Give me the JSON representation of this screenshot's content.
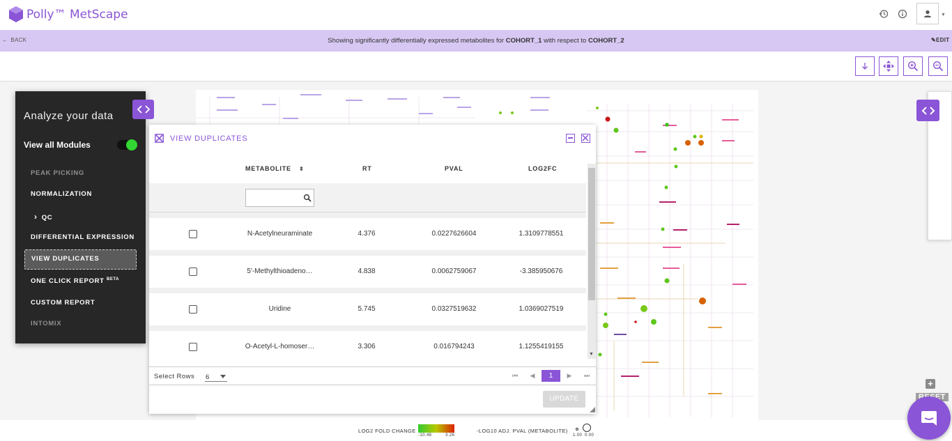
{
  "app": {
    "name": "Polly™ MetScape"
  },
  "header": {
    "history_icon": "history-icon",
    "info_icon": "info-icon",
    "user_icon": "user-icon"
  },
  "infobar": {
    "back_label": "BACK",
    "prefix": "Showing significantly differentially expressed metabolites for ",
    "cohort_a": "COHORT_1",
    "middle": " with respect to ",
    "cohort_b": "COHORT_2",
    "edit_label": "EDIT"
  },
  "toolbar": {
    "icons": [
      "download-icon",
      "move-icon",
      "zoom-in-icon",
      "zoom-out-icon"
    ]
  },
  "side": {
    "title": "Analyze your data",
    "view_all_label": "View all Modules",
    "view_all_on": true,
    "modules": [
      {
        "label": "PEAK PICKING",
        "state": "dim"
      },
      {
        "label": "NORMALIZATION",
        "state": "normal"
      },
      {
        "label": "QC",
        "state": "normal"
      },
      {
        "label": "DIFFERENTIAL EXPRESSION",
        "state": "normal"
      },
      {
        "label": "VIEW DUPLICATES",
        "state": "active"
      },
      {
        "label": "ONE CLICK REPORT",
        "state": "normal",
        "badge": "BETA"
      },
      {
        "label": "CUSTOM REPORT",
        "state": "normal"
      },
      {
        "label": "INTOMIX",
        "state": "dim"
      }
    ]
  },
  "dialog": {
    "title": "VIEW DUPLICATES",
    "columns": [
      "METABOLITE",
      "RT",
      "PVAL",
      "LOG2FC"
    ],
    "search_placeholder": "",
    "rows": [
      {
        "metabolite": "N-Acetylneuraminate",
        "rt": "4.376",
        "pval": "0.0227626604",
        "log2fc": "1.3109778551"
      },
      {
        "metabolite": "5'-Methylthioadeno…",
        "rt": "4.838",
        "pval": "0.0062759067",
        "log2fc": "-3.385950676"
      },
      {
        "metabolite": "Uridine",
        "rt": "5.745",
        "pval": "0.0327519632",
        "log2fc": "1.0369027519"
      },
      {
        "metabolite": "O-Acetyl-L-homoser…",
        "rt": "3.306",
        "pval": "0.016794243",
        "log2fc": "1.1255419155"
      }
    ],
    "select_rows_label": "Select Rows",
    "select_rows_value": "6",
    "current_page": "1",
    "update_label": "UPDATE"
  },
  "right": {
    "reset_label": "RESET",
    "plus_label": "+"
  },
  "legend": {
    "fc_label": "LOG2 FOLD CHANGE",
    "fc_min": "-10.48",
    "fc_max": "3.26",
    "pval_label": "-LOG10 ADJ. PVAL (METABOLITE)",
    "pval_min": "1.00",
    "pval_max": "0.00"
  },
  "colors": {
    "accent": "#8a55d6",
    "infobar": "#d7c8f3",
    "panel": "#272727",
    "toggle_on": "#33d633"
  }
}
